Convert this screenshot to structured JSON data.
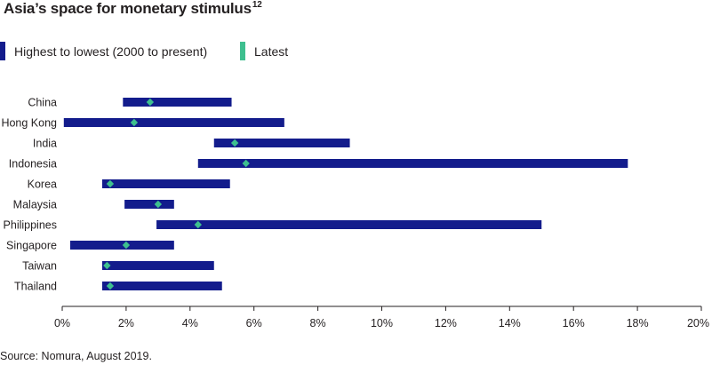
{
  "title": "Asia’s space for monetary stimulus",
  "title_superscript": "12",
  "source": "Source: Nomura, August 2019.",
  "colors": {
    "range": "#131c8c",
    "latest": "#3ebf8f",
    "axis": "#231f20"
  },
  "chart_data": {
    "type": "range-bar",
    "title": "Asia’s space for monetary stimulus",
    "xlabel": "",
    "ylabel": "",
    "xlim": [
      0,
      20
    ],
    "x_ticks": [
      0,
      2,
      4,
      6,
      8,
      10,
      12,
      14,
      16,
      18,
      20
    ],
    "x_tick_labels": [
      "0%",
      "2%",
      "4%",
      "6%",
      "8%",
      "10%",
      "12%",
      "14%",
      "16%",
      "18%",
      "20%"
    ],
    "grid": false,
    "legend_position": "top-left",
    "legend": [
      {
        "name": "Highest to lowest (2000 to present)",
        "kind": "range"
      },
      {
        "name": "Latest",
        "kind": "latest"
      }
    ],
    "categories": [
      "China",
      "Hong Kong",
      "India",
      "Indonesia",
      "Korea",
      "Malaysia",
      "Philippines",
      "Singapore",
      "Taiwan",
      "Thailand"
    ],
    "series": [
      {
        "name": "Highest to lowest (2000 to present)",
        "low": [
          1.9,
          0.05,
          4.75,
          4.25,
          1.25,
          1.95,
          2.95,
          0.25,
          1.25,
          1.25
        ],
        "high": [
          5.3,
          6.95,
          9.0,
          17.7,
          5.25,
          3.5,
          15.0,
          3.5,
          4.75,
          5.0
        ]
      },
      {
        "name": "Latest",
        "values": [
          2.75,
          2.25,
          5.4,
          5.75,
          1.5,
          3.0,
          4.25,
          2.0,
          1.4,
          1.5
        ]
      }
    ]
  }
}
